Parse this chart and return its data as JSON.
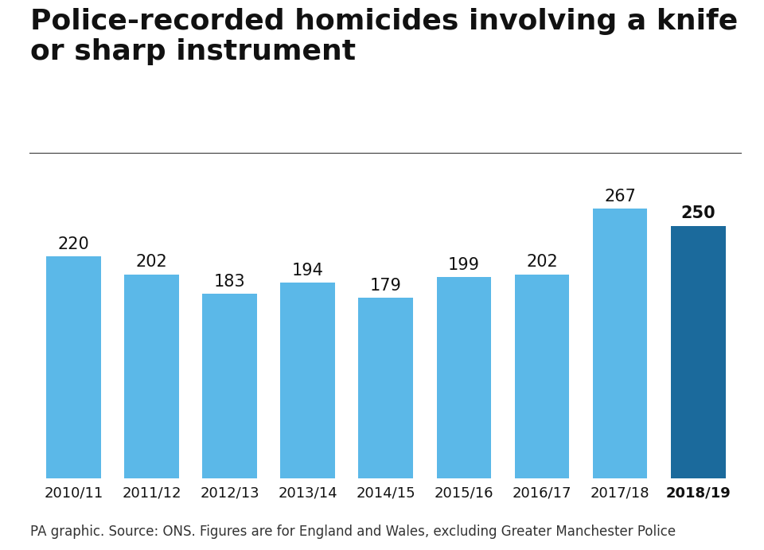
{
  "title_line1": "Police-recorded homicides involving a knife",
  "title_line2": "or sharp instrument",
  "categories": [
    "2010/11",
    "2011/12",
    "2012/13",
    "2013/14",
    "2014/15",
    "2015/16",
    "2016/17",
    "2017/18",
    "2018/19"
  ],
  "values": [
    220,
    202,
    183,
    194,
    179,
    199,
    202,
    267,
    250
  ],
  "bar_colors": [
    "#5BB8E8",
    "#5BB8E8",
    "#5BB8E8",
    "#5BB8E8",
    "#5BB8E8",
    "#5BB8E8",
    "#5BB8E8",
    "#5BB8E8",
    "#1B6A9C"
  ],
  "label_fontweights": [
    "normal",
    "normal",
    "normal",
    "normal",
    "normal",
    "normal",
    "normal",
    "normal",
    "bold"
  ],
  "xlabel_fontweights": [
    "normal",
    "normal",
    "normal",
    "normal",
    "normal",
    "normal",
    "normal",
    "normal",
    "bold"
  ],
  "footer": "PA graphic. Source: ONS. Figures are for England and Wales, excluding Greater Manchester Police",
  "background_color": "#ffffff",
  "title_fontsize": 26,
  "label_fontsize": 15,
  "xlabel_fontsize": 13,
  "footer_fontsize": 12,
  "ylim": [
    0,
    310
  ]
}
